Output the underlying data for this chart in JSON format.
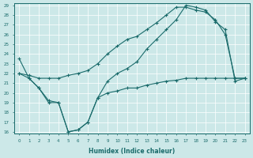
{
  "xlabel": "Humidex (Indice chaleur)",
  "background_color": "#cce8e8",
  "line_color": "#1a6b6b",
  "grid_color": "#aed4d4",
  "ylim_min": 16,
  "ylim_max": 29,
  "xlim_min": -0.5,
  "xlim_max": 23.5,
  "yticks": [
    16,
    17,
    18,
    19,
    20,
    21,
    22,
    23,
    24,
    25,
    26,
    27,
    28,
    29
  ],
  "xticks": [
    0,
    1,
    2,
    3,
    4,
    5,
    6,
    7,
    8,
    9,
    10,
    11,
    12,
    13,
    14,
    15,
    16,
    17,
    18,
    19,
    20,
    21,
    22,
    23
  ],
  "line1_x": [
    0,
    1,
    2,
    3,
    4,
    5,
    6,
    7,
    8,
    9,
    10,
    11,
    12,
    13,
    14,
    15,
    16,
    17,
    18,
    19,
    20,
    21,
    22,
    23
  ],
  "line1_y": [
    23.5,
    21.5,
    20.5,
    19.2,
    19.0,
    16.0,
    16.2,
    17.0,
    19.5,
    21.2,
    22.0,
    22.5,
    23.2,
    24.5,
    25.5,
    26.5,
    27.5,
    29.0,
    28.8,
    28.5,
    27.3,
    26.5,
    21.2,
    21.5
  ],
  "line2_x": [
    0,
    1,
    2,
    3,
    4,
    5,
    6,
    7,
    8,
    9,
    10,
    11,
    12,
    13,
    14,
    15,
    16,
    17,
    18,
    19,
    20,
    21,
    22,
    23
  ],
  "line2_y": [
    22.0,
    21.8,
    21.5,
    21.5,
    21.5,
    21.8,
    22.0,
    22.3,
    23.0,
    24.0,
    24.8,
    25.5,
    25.8,
    26.5,
    27.2,
    28.0,
    28.8,
    28.8,
    28.5,
    28.3,
    27.5,
    26.0,
    21.5,
    21.5
  ],
  "line3_x": [
    0,
    1,
    2,
    3,
    4,
    5,
    6,
    7,
    8,
    9,
    10,
    11,
    12,
    13,
    14,
    15,
    16,
    17,
    18,
    19,
    20,
    21,
    22,
    23
  ],
  "line3_y": [
    22.0,
    21.5,
    20.5,
    19.0,
    19.0,
    16.0,
    16.2,
    17.0,
    19.5,
    20.0,
    20.2,
    20.5,
    20.5,
    20.8,
    21.0,
    21.2,
    21.3,
    21.5,
    21.5,
    21.5,
    21.5,
    21.5,
    21.5,
    21.5
  ]
}
